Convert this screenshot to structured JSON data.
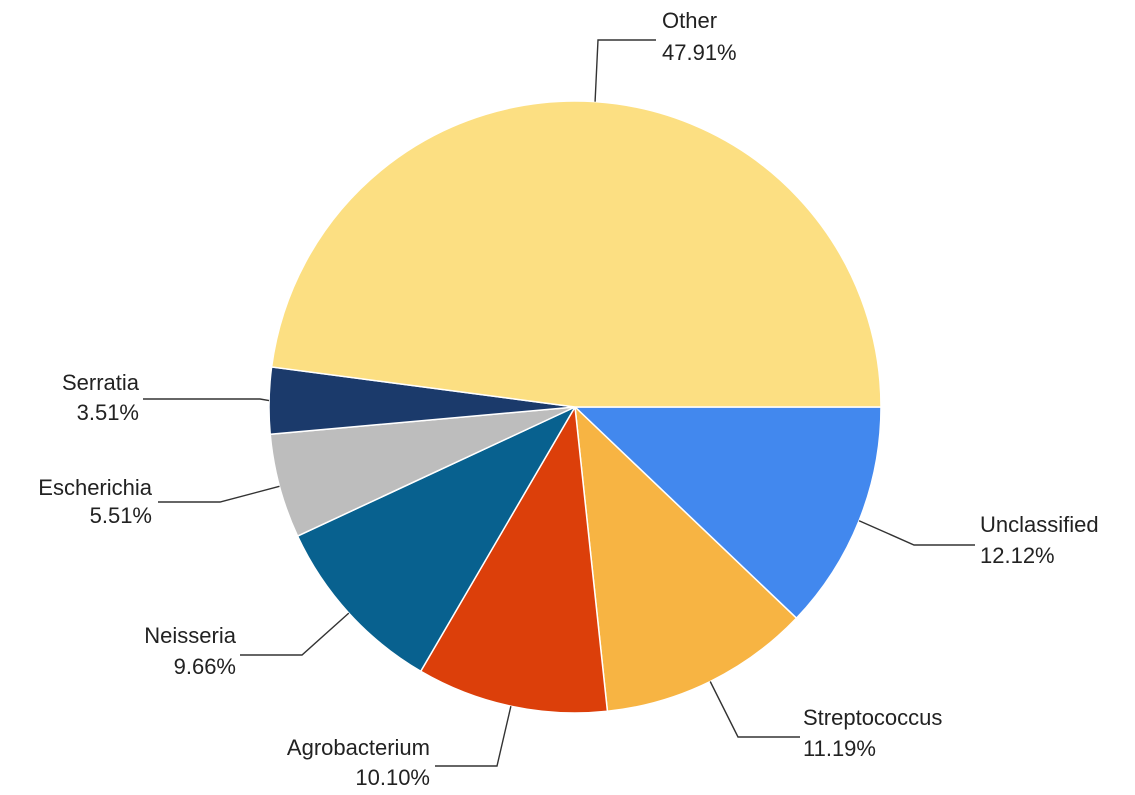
{
  "chart_data": {
    "type": "pie",
    "title": "",
    "slices": [
      {
        "label": "Unclassified",
        "value": 12.12,
        "display": "12.12%",
        "color": "#4288EE"
      },
      {
        "label": "Streptococcus",
        "value": 11.19,
        "display": "11.19%",
        "color": "#F7B443"
      },
      {
        "label": "Agrobacterium",
        "value": 10.1,
        "display": "10.10%",
        "color": "#DC3F0A"
      },
      {
        "label": "Neisseria",
        "value": 9.66,
        "display": "9.66%",
        "color": "#08618F"
      },
      {
        "label": "Escherichia",
        "value": 5.51,
        "display": "5.51%",
        "color": "#BDBDBD"
      },
      {
        "label": "Serratia",
        "value": 3.51,
        "display": "3.51%",
        "color": "#1B3A6B"
      },
      {
        "label": "Other",
        "value": 47.91,
        "display": "47.91%",
        "color": "#FCDF82"
      }
    ],
    "start_angle": "3 o'clock",
    "direction": "clockwise",
    "legend": "none"
  }
}
